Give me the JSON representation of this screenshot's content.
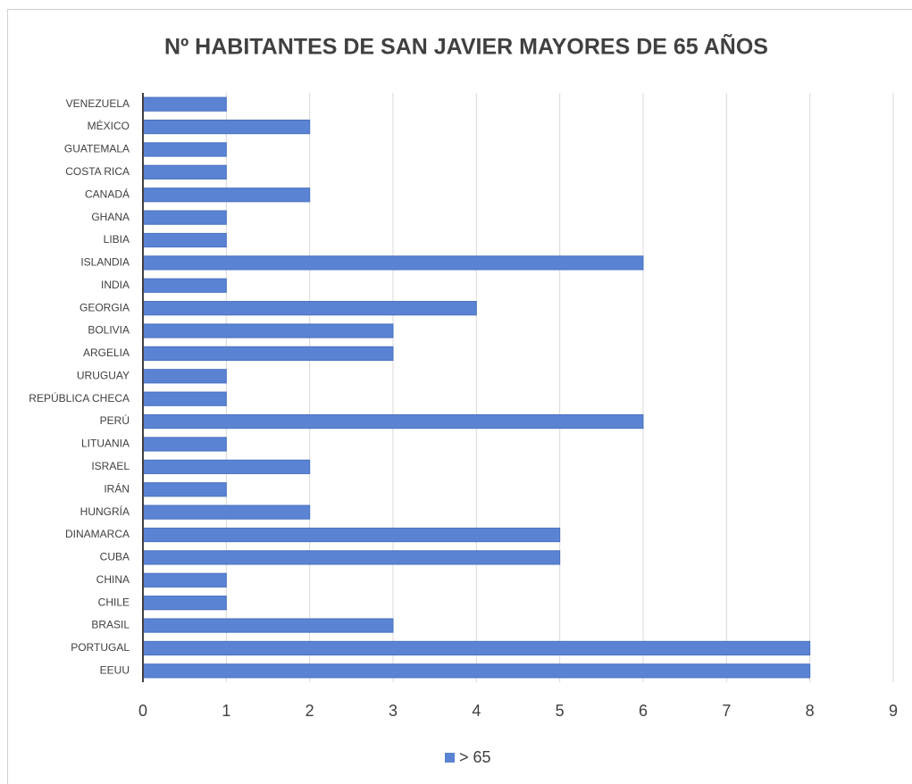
{
  "chart_data": {
    "type": "bar",
    "orientation": "horizontal",
    "title": "Nº HABITANTES DE SAN JAVIER MAYORES DE 65 AÑOS",
    "categories": [
      "VENEZUELA",
      "MÉXICO",
      "GUATEMALA",
      "COSTA RICA",
      "CANADÁ",
      "GHANA",
      "LIBIA",
      "ISLANDIA",
      "INDIA",
      "GEORGIA",
      "BOLIVIA",
      "ARGELIA",
      "URUGUAY",
      "REPÚBLICA CHECA",
      "PERÚ",
      "LITUANIA",
      "ISRAEL",
      "IRÁN",
      "HUNGRÍA",
      "DINAMARCA",
      "CUBA",
      "CHINA",
      "CHILE",
      "BRASIL",
      "PORTUGAL",
      "EEUU"
    ],
    "series": [
      {
        "name": "> 65",
        "color": "#5b83d3",
        "values": [
          1,
          2,
          1,
          1,
          2,
          1,
          1,
          6,
          1,
          4,
          3,
          3,
          1,
          1,
          6,
          1,
          2,
          1,
          2,
          5,
          5,
          1,
          1,
          3,
          8,
          8
        ]
      }
    ],
    "xlim": [
      0,
      9
    ],
    "xticks": [
      0,
      1,
      2,
      3,
      4,
      5,
      6,
      7,
      8,
      9
    ],
    "grid": true,
    "legend": "bottom"
  }
}
